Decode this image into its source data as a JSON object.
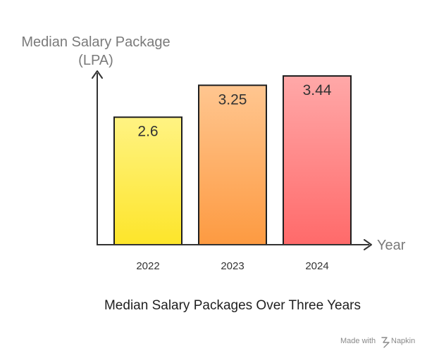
{
  "chart_data": {
    "type": "bar",
    "categories": [
      "2022",
      "2023",
      "2024"
    ],
    "values": [
      2.6,
      3.25,
      3.44
    ],
    "data_labels": [
      "2.6",
      "3.25",
      "3.44"
    ],
    "title": "Median Salary Packages Over Three Years",
    "ylabel_lines": [
      "Median Salary Package",
      "(LPA)"
    ],
    "xlabel": "Year",
    "ylim": [
      0,
      3.75
    ],
    "grid": false,
    "legend": "none",
    "bar_gradients": [
      {
        "top": "#fff383",
        "bottom": "#fde52a"
      },
      {
        "top": "#ffc690",
        "bottom": "#fd9a41"
      },
      {
        "top": "#ffa8a8",
        "bottom": "#ff6a6a"
      }
    ],
    "bar_outline": "#1f1f1f",
    "axis_color": "#333333"
  },
  "watermark": {
    "text": "Made with",
    "brand": "Napkin"
  }
}
